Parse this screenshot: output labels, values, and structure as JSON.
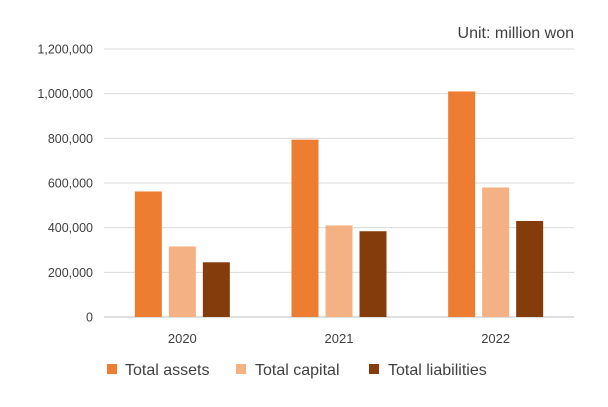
{
  "chart_data": {
    "type": "bar",
    "unit_label": "Unit: million won",
    "categories": [
      "2020",
      "2021",
      "2022"
    ],
    "series": [
      {
        "name": "Total assets",
        "color": "#ED7D31",
        "values": [
          562000,
          794000,
          1010000
        ]
      },
      {
        "name": "Total capital",
        "color": "#F4B183",
        "values": [
          316000,
          410000,
          580000
        ]
      },
      {
        "name": "Total liabilities",
        "color": "#843C0C",
        "values": [
          245000,
          384000,
          430000
        ]
      }
    ],
    "ylim": [
      0,
      1200000
    ],
    "yticks": [
      0,
      200000,
      400000,
      600000,
      800000,
      1000000,
      1200000
    ],
    "ytick_labels": [
      "0",
      "200,000",
      "400,000",
      "600,000",
      "800,000",
      "1,000,000",
      "1,200,000"
    ],
    "grid": true,
    "legend_position": "bottom"
  }
}
